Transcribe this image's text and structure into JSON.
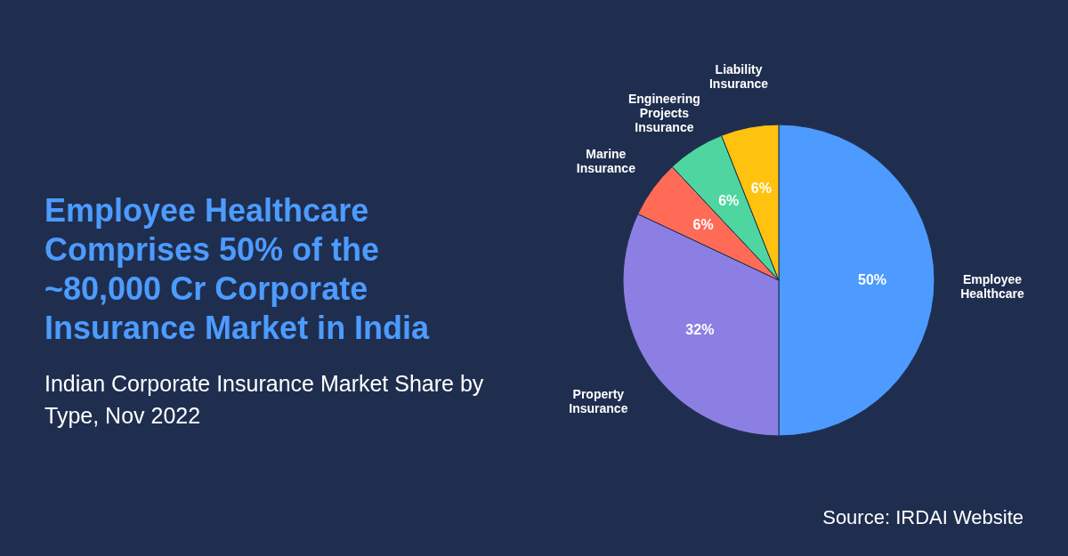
{
  "chart_data": {
    "type": "pie",
    "title": "Employee Healthcare Comprises 50% of the ~80,000 Cr Corporate Insurance Market in India",
    "subtitle": "Indian Corporate Insurance Market Share by Type, Nov 2022",
    "categories": [
      "Employee Healthcare",
      "Property Insurance",
      "Marine Insurance",
      "Engineering Projects Insurance",
      "Liability Insurance"
    ],
    "values": [
      50,
      32,
      6,
      6,
      6
    ],
    "colors": [
      "#4d9bff",
      "#8c7fe3",
      "#ff6b57",
      "#4fd6a0",
      "#ffc20e"
    ],
    "value_labels": [
      "50%",
      "32%",
      "6%",
      "6%",
      "6%"
    ],
    "annotations": [
      "Source: IRDAI Website"
    ]
  }
}
